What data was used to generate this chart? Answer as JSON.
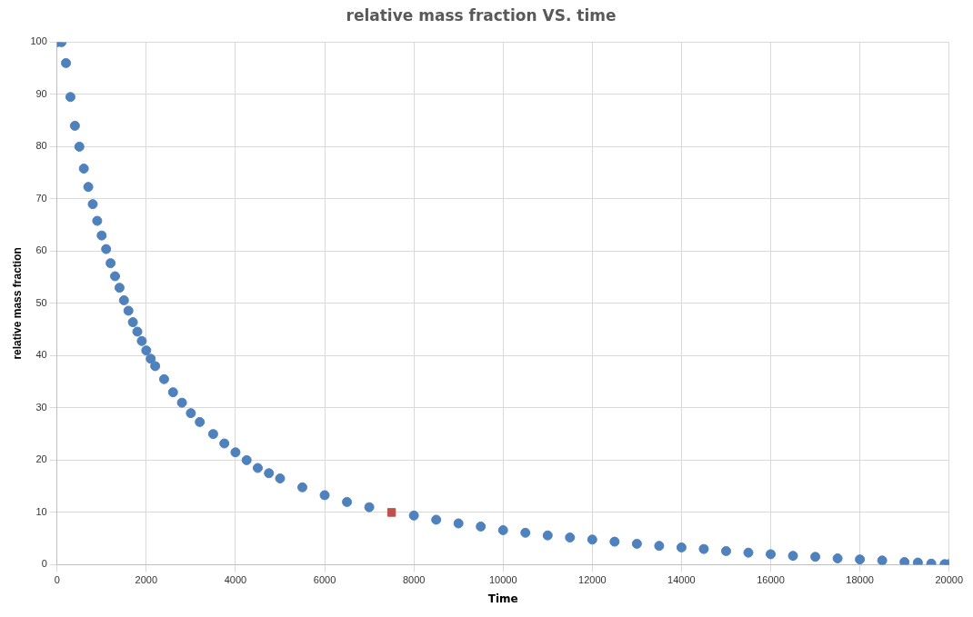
{
  "chart_data": {
    "type": "scatter",
    "title": "relative mass fraction VS. time",
    "xlabel": "Time",
    "ylabel": "relative mass fraction",
    "xlim": [
      0,
      20000
    ],
    "xticks": [
      0,
      2000,
      4000,
      6000,
      8000,
      10000,
      12000,
      14000,
      16000,
      18000,
      20000
    ],
    "ylim": [
      0,
      100
    ],
    "yticks": [
      0,
      10,
      20,
      30,
      40,
      50,
      60,
      70,
      80,
      90,
      100
    ],
    "grid": true,
    "legend": false,
    "series": [
      {
        "color": "#4f81bd",
        "marker": "circle",
        "x": [
          0,
          100,
          200,
          300,
          400,
          500,
          600,
          700,
          800,
          900,
          1000,
          1100,
          1200,
          1300,
          1400,
          1500,
          1600,
          1700,
          1800,
          1900,
          2000,
          2100,
          2200,
          2400,
          2600,
          2800,
          3000,
          3200,
          3500,
          3750,
          4000,
          4250,
          4500,
          4750,
          5000,
          5500,
          6000,
          6500,
          7000,
          8000,
          8500,
          9000,
          9500,
          10000,
          10500,
          11000,
          11500,
          12000,
          12500,
          13000,
          13500,
          14000,
          14500,
          15000,
          15500,
          16000,
          16500,
          17000,
          17500,
          18000,
          18500,
          19000,
          19300,
          19600,
          19900,
          20000
        ],
        "values": [
          100,
          100,
          96,
          89.5,
          84,
          80,
          75.8,
          72.3,
          69,
          65.8,
          63,
          60.4,
          57.7,
          55.2,
          53,
          50.6,
          48.6,
          46.4,
          44.6,
          42.8,
          41,
          39.4,
          38,
          35.5,
          33,
          31,
          29,
          27.3,
          25,
          23.2,
          21.5,
          20,
          18.5,
          17.5,
          16.5,
          14.8,
          13.3,
          12,
          11,
          9.4,
          8.6,
          7.9,
          7.3,
          6.6,
          6.1,
          5.6,
          5.2,
          4.8,
          4.4,
          4,
          3.6,
          3.3,
          3,
          2.6,
          2.3,
          2,
          1.7,
          1.5,
          1.2,
          1,
          0.8,
          0.5,
          0.4,
          0.2,
          0.1,
          0.1
        ]
      },
      {
        "color": "#c0504d",
        "marker": "square",
        "x": [
          7500
        ],
        "values": [
          10
        ]
      }
    ]
  }
}
